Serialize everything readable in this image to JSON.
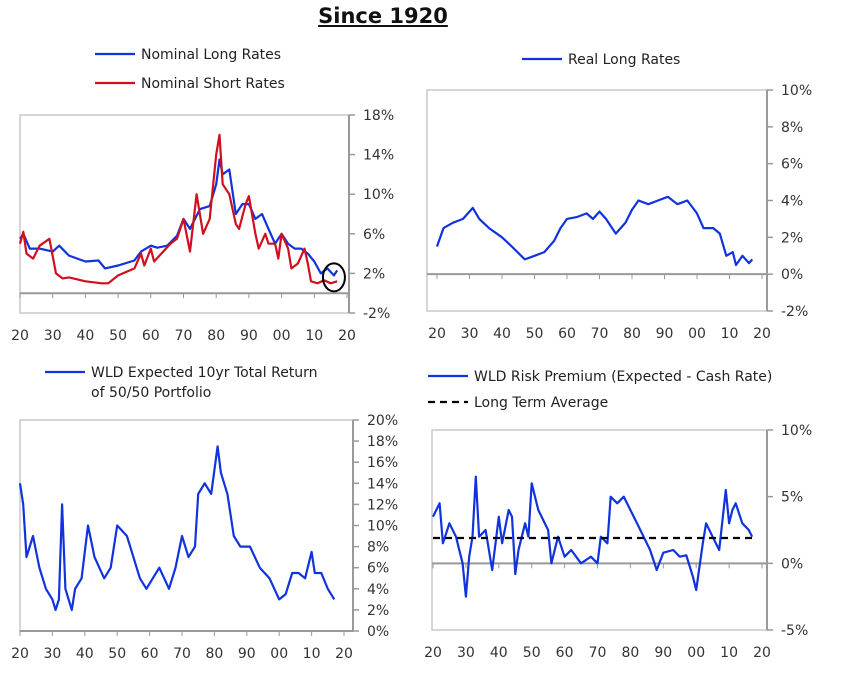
{
  "title": "Since 1920",
  "colors": {
    "blue": "#1133dd",
    "red": "#d0101e",
    "axis": "#999999",
    "average": "#000000"
  },
  "chart_data": [
    {
      "type": "line",
      "legend": [
        "Nominal Long Rates",
        "Nominal Short Rates"
      ],
      "legend_placement": "top-left",
      "ylim": [
        -2,
        18
      ],
      "yticks": [
        18,
        14,
        10,
        6,
        2,
        -2
      ],
      "ytick_labels": [
        "18%",
        "14%",
        "10%",
        "6%",
        "2%",
        "-2%"
      ],
      "xlim": [
        1920,
        2020
      ],
      "xtick_labels": [
        "20",
        "30",
        "40",
        "50",
        "60",
        "70",
        "80",
        "90",
        "00",
        "10",
        "20"
      ],
      "annotation": "circle around latest values (~2016)",
      "series": [
        {
          "name": "Nominal Long Rates",
          "color": "#1133dd",
          "x": [
            1920,
            1921,
            1923,
            1926,
            1930,
            1932,
            1935,
            1940,
            1944,
            1946,
            1950,
            1955,
            1957,
            1960,
            1962,
            1965,
            1968,
            1970,
            1972,
            1975,
            1978,
            1980,
            1981,
            1982,
            1984,
            1986,
            1988,
            1990,
            1992,
            1994,
            1996,
            1998,
            2000,
            2002,
            2004,
            2006,
            2008,
            2010,
            2012,
            2014,
            2016,
            2017
          ],
          "y": [
            5.5,
            6,
            4.5,
            4.5,
            4.2,
            4.8,
            3.8,
            3.2,
            3.3,
            2.5,
            2.8,
            3.3,
            4.2,
            4.8,
            4.6,
            4.8,
            5.8,
            7.5,
            6.5,
            8.5,
            8.8,
            11,
            13.5,
            12,
            12.5,
            8,
            9,
            9,
            7.5,
            8,
            6.5,
            5,
            6,
            5,
            4.5,
            4.5,
            4,
            3.2,
            2,
            2.5,
            1.8,
            2.3
          ]
        },
        {
          "name": "Nominal Short Rates",
          "color": "#d0101e",
          "x": [
            1920,
            1921,
            1922,
            1924,
            1926,
            1929,
            1931,
            1933,
            1935,
            1940,
            1945,
            1947,
            1950,
            1955,
            1957,
            1958,
            1960,
            1961,
            1966,
            1968,
            1970,
            1972,
            1974,
            1976,
            1978,
            1980,
            1981,
            1982,
            1984,
            1986,
            1987,
            1989,
            1990,
            1992,
            1993,
            1995,
            1996,
            1998,
            1999,
            2000,
            2002,
            2003,
            2005,
            2007,
            2008,
            2009,
            2011,
            2013,
            2015,
            2017
          ],
          "y": [
            5,
            6.2,
            4,
            3.5,
            4.8,
            5.5,
            2,
            1.5,
            1.6,
            1.2,
            1,
            1,
            1.8,
            2.5,
            4,
            2.8,
            4.5,
            3.2,
            5,
            5.5,
            7.5,
            4.2,
            10,
            6,
            7.5,
            14,
            16,
            11,
            10,
            7,
            6.5,
            9,
            9.8,
            6,
            4.5,
            6,
            5,
            5,
            3.5,
            6,
            4.5,
            2.5,
            3,
            4.5,
            3,
            1.2,
            1,
            1.3,
            1,
            1.2
          ]
        }
      ]
    },
    {
      "type": "line",
      "legend": [
        "Real Long Rates"
      ],
      "legend_placement": "top",
      "ylim": [
        -2,
        10
      ],
      "yticks": [
        10,
        8,
        6,
        4,
        2,
        0,
        -2
      ],
      "ytick_labels": [
        "10%",
        "8%",
        "6%",
        "4%",
        "2%",
        "0%",
        "-2%"
      ],
      "xlim": [
        1920,
        2020
      ],
      "xtick_labels": [
        "20",
        "30",
        "40",
        "50",
        "60",
        "70",
        "80",
        "90",
        "00",
        "10",
        "20"
      ],
      "series": [
        {
          "name": "Real Long Rates",
          "color": "#1133dd",
          "x": [
            1920,
            1922,
            1925,
            1928,
            1931,
            1933,
            1936,
            1940,
            1943,
            1947,
            1950,
            1953,
            1956,
            1958,
            1960,
            1963,
            1966,
            1968,
            1970,
            1972,
            1975,
            1978,
            1980,
            1982,
            1985,
            1988,
            1991,
            1994,
            1997,
            2000,
            2002,
            2005,
            2007,
            2009,
            2011,
            2012,
            2014,
            2016,
            2017
          ],
          "y": [
            1.5,
            2.5,
            2.8,
            3,
            3.6,
            3,
            2.5,
            2,
            1.5,
            0.8,
            1,
            1.2,
            1.8,
            2.5,
            3,
            3.1,
            3.3,
            3,
            3.4,
            3,
            2.2,
            2.8,
            3.5,
            4,
            3.8,
            4,
            4.2,
            3.8,
            4,
            3.3,
            2.5,
            2.5,
            2.2,
            1,
            1.2,
            0.5,
            1,
            0.6,
            0.8
          ]
        }
      ]
    },
    {
      "type": "line",
      "legend": [
        "WLD Expected 10yr Total Return",
        "of 50/50 Portfolio"
      ],
      "legend_placement": "top-left",
      "ylim": [
        0,
        20
      ],
      "yticks": [
        20,
        18,
        16,
        14,
        12,
        10,
        8,
        6,
        4,
        2,
        0
      ],
      "ytick_labels": [
        "20%",
        "18%",
        "16%",
        "14%",
        "12%",
        "10%",
        "8%",
        "6%",
        "4%",
        "2%",
        "0%"
      ],
      "xlim": [
        1920,
        2020
      ],
      "xtick_labels": [
        "20",
        "30",
        "40",
        "50",
        "60",
        "70",
        "80",
        "90",
        "00",
        "10",
        "20"
      ],
      "series": [
        {
          "name": "WLD Expected 10yr Total Return of 50/50 Portfolio",
          "color": "#1133dd",
          "x": [
            1920,
            1921,
            1922,
            1924,
            1926,
            1928,
            1930,
            1931,
            1932,
            1933,
            1934,
            1935,
            1936,
            1937,
            1939,
            1941,
            1943,
            1946,
            1948,
            1950,
            1953,
            1955,
            1957,
            1959,
            1961,
            1963,
            1966,
            1968,
            1970,
            1972,
            1974,
            1975,
            1977,
            1979,
            1981,
            1982,
            1984,
            1986,
            1988,
            1991,
            1994,
            1997,
            2000,
            2002,
            2004,
            2006,
            2008,
            2010,
            2011,
            2013,
            2015,
            2017
          ],
          "y": [
            14,
            12,
            7,
            9,
            6,
            4,
            3,
            2,
            3,
            12,
            4,
            3,
            2,
            4,
            5,
            10,
            7,
            5,
            6,
            10,
            9,
            7,
            5,
            4,
            5,
            6,
            4,
            6,
            9,
            7,
            8,
            13,
            14,
            13,
            17.5,
            15,
            13,
            9,
            8,
            8,
            6,
            5,
            3,
            3.5,
            5.5,
            5.5,
            5,
            7.5,
            5.5,
            5.5,
            4,
            3
          ]
        }
      ]
    },
    {
      "type": "line",
      "legend": [
        "WLD Risk Premium (Expected - Cash Rate)",
        "Long Term Average"
      ],
      "legend_placement": "top-left",
      "ylim": [
        -5,
        10
      ],
      "yticks": [
        10,
        5,
        0,
        -5
      ],
      "ytick_labels": [
        "10%",
        "5%",
        "0%",
        "-5%"
      ],
      "xlim": [
        1920,
        2020
      ],
      "xtick_labels": [
        "20",
        "30",
        "40",
        "50",
        "60",
        "70",
        "80",
        "90",
        "00",
        "10",
        "20"
      ],
      "series": [
        {
          "name": "WLD Risk Premium (Expected - Cash Rate)",
          "color": "#1133dd",
          "x": [
            1920,
            1922,
            1923,
            1925,
            1927,
            1929,
            1930,
            1931,
            1932,
            1933,
            1934,
            1936,
            1938,
            1940,
            1941,
            1943,
            1944,
            1945,
            1946,
            1948,
            1949,
            1950,
            1952,
            1955,
            1956,
            1958,
            1960,
            1962,
            1965,
            1968,
            1970,
            1971,
            1973,
            1974,
            1976,
            1978,
            1980,
            1982,
            1984,
            1986,
            1988,
            1990,
            1993,
            1995,
            1997,
            1999,
            2000,
            2002,
            2003,
            2005,
            2007,
            2009,
            2010,
            2011,
            2012,
            2014,
            2016,
            2017
          ],
          "y": [
            3.5,
            4.5,
            1.5,
            3,
            2,
            0,
            -2.5,
            0.5,
            2,
            6.5,
            2,
            2.5,
            -0.5,
            3.5,
            1.5,
            4,
            3.5,
            -0.8,
            1,
            3,
            2,
            6,
            4,
            2.5,
            0,
            2,
            0.5,
            1,
            0,
            0.5,
            0,
            2,
            1.5,
            5,
            4.5,
            5,
            4,
            3,
            2,
            1,
            -0.5,
            0.8,
            1,
            0.5,
            0.6,
            -1,
            -2,
            1.5,
            3,
            2,
            1,
            5.5,
            3,
            4,
            4.5,
            3,
            2.5,
            2
          ]
        },
        {
          "name": "Long Term Average",
          "color": "#000000",
          "dashed": true,
          "x": [
            1920,
            2017
          ],
          "y": [
            1.9,
            1.9
          ]
        }
      ]
    }
  ]
}
